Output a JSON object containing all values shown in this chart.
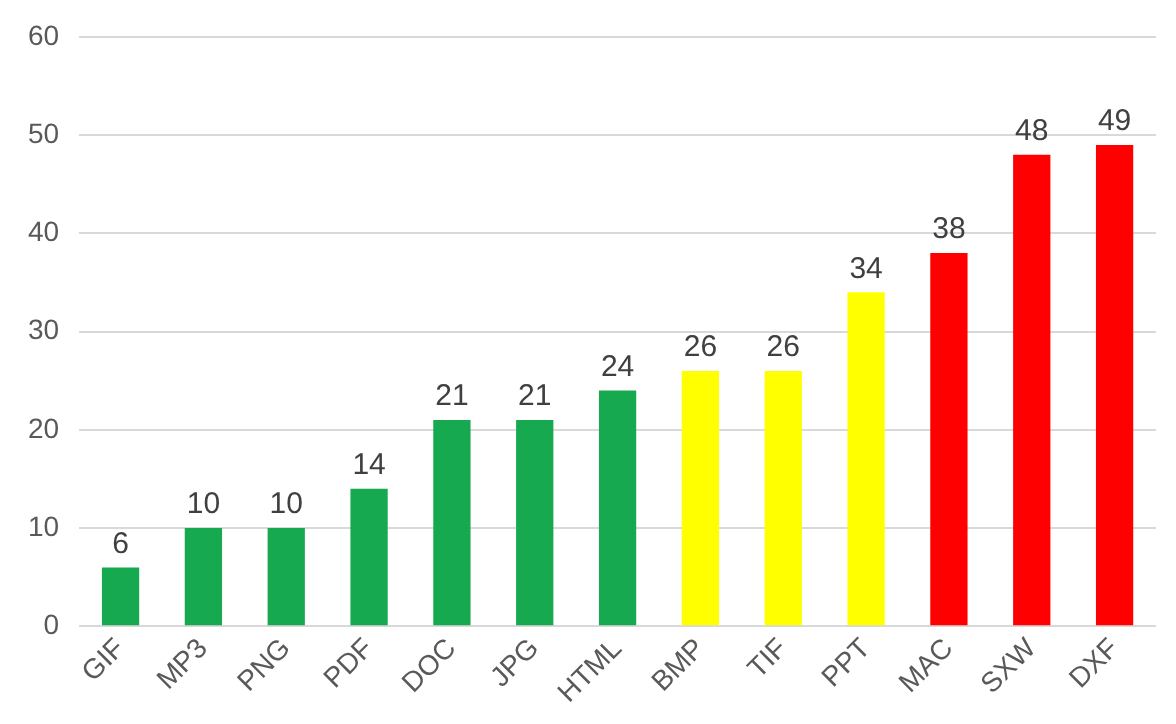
{
  "chart_data": {
    "type": "bar",
    "categories": [
      "GIF",
      "MP3",
      "PNG",
      "PDF",
      "DOC",
      "JPG",
      "HTML",
      "BMP",
      "TIF",
      "PPT",
      "MAC",
      "SXW",
      "DXF"
    ],
    "values": [
      6,
      10,
      10,
      14,
      21,
      21,
      24,
      26,
      26,
      34,
      38,
      48,
      49
    ],
    "colors": [
      "#16a94f",
      "#16a94f",
      "#16a94f",
      "#16a94f",
      "#16a94f",
      "#16a94f",
      "#16a94f",
      "#ffff00",
      "#ffff00",
      "#ffff00",
      "#ff0000",
      "#ff0000",
      "#ff0000"
    ],
    "ylim": [
      0,
      60
    ],
    "yticks": [
      0,
      10,
      20,
      30,
      40,
      50,
      60
    ],
    "grid": "y",
    "data_labels": true,
    "legend": false
  }
}
